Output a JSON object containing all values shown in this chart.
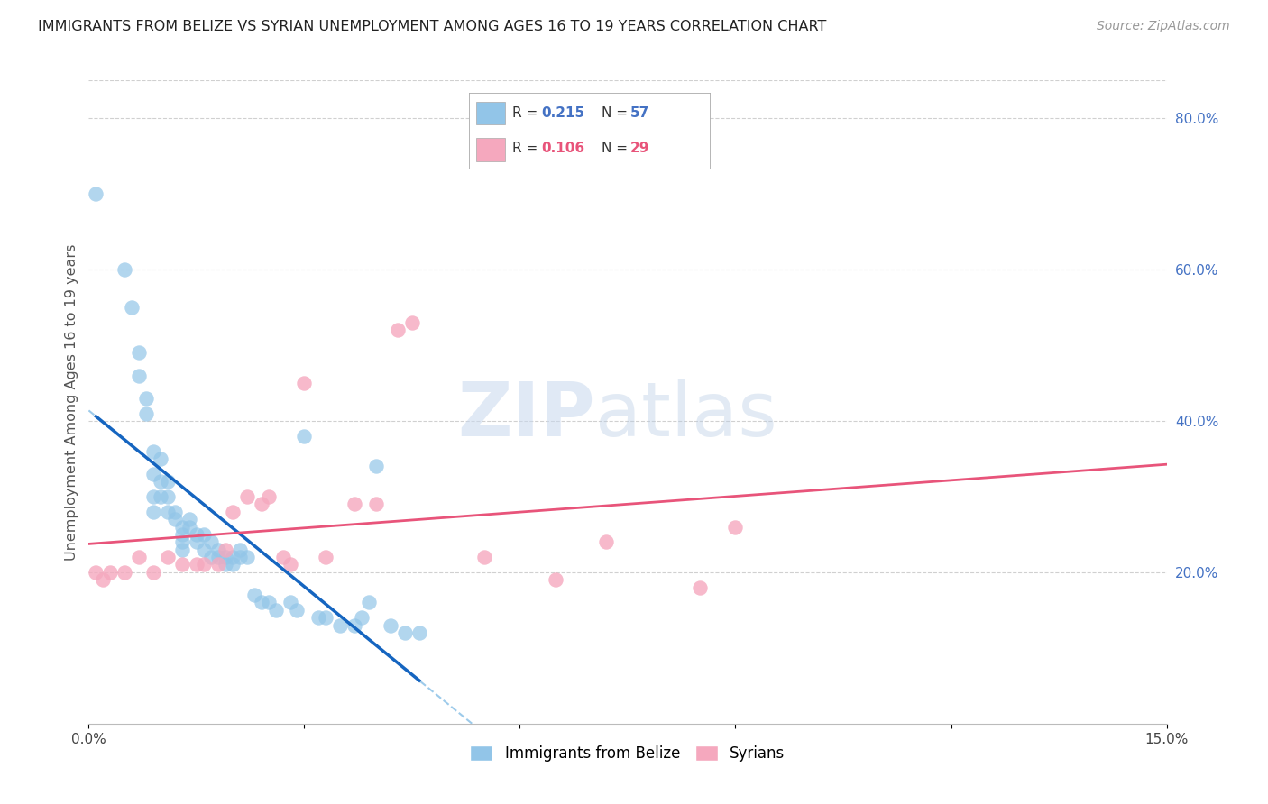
{
  "title": "IMMIGRANTS FROM BELIZE VS SYRIAN UNEMPLOYMENT AMONG AGES 16 TO 19 YEARS CORRELATION CHART",
  "source": "Source: ZipAtlas.com",
  "ylabel": "Unemployment Among Ages 16 to 19 years",
  "xlim": [
    0.0,
    0.15
  ],
  "ylim": [
    0.0,
    0.85
  ],
  "xtick_positions": [
    0.0,
    0.03,
    0.06,
    0.09,
    0.12,
    0.15
  ],
  "xtick_labels": [
    "0.0%",
    "",
    "",
    "",
    "",
    "15.0%"
  ],
  "ytick_right_positions": [
    0.2,
    0.4,
    0.6,
    0.8
  ],
  "ytick_right_labels": [
    "20.0%",
    "40.0%",
    "60.0%",
    "80.0%"
  ],
  "belize_color": "#92C5E8",
  "syrian_color": "#F5A8BE",
  "belize_line_color": "#1565c0",
  "syrian_line_color": "#e8547a",
  "dashed_line_color": "#92C5E8",
  "R_belize": "0.215",
  "N_belize": "57",
  "R_syrian": "0.106",
  "N_syrian": "29",
  "belize_x": [
    0.001,
    0.005,
    0.006,
    0.007,
    0.007,
    0.008,
    0.008,
    0.009,
    0.009,
    0.009,
    0.009,
    0.01,
    0.01,
    0.01,
    0.011,
    0.011,
    0.011,
    0.012,
    0.012,
    0.013,
    0.013,
    0.013,
    0.013,
    0.014,
    0.014,
    0.015,
    0.015,
    0.016,
    0.016,
    0.017,
    0.017,
    0.018,
    0.018,
    0.019,
    0.019,
    0.02,
    0.02,
    0.021,
    0.021,
    0.022,
    0.023,
    0.024,
    0.025,
    0.026,
    0.028,
    0.029,
    0.03,
    0.032,
    0.033,
    0.035,
    0.037,
    0.038,
    0.039,
    0.04,
    0.042,
    0.044,
    0.046
  ],
  "belize_y": [
    0.7,
    0.6,
    0.55,
    0.49,
    0.46,
    0.43,
    0.41,
    0.36,
    0.33,
    0.3,
    0.28,
    0.35,
    0.32,
    0.3,
    0.32,
    0.3,
    0.28,
    0.28,
    0.27,
    0.26,
    0.25,
    0.24,
    0.23,
    0.27,
    0.26,
    0.25,
    0.24,
    0.25,
    0.23,
    0.24,
    0.22,
    0.23,
    0.22,
    0.22,
    0.21,
    0.22,
    0.21,
    0.23,
    0.22,
    0.22,
    0.17,
    0.16,
    0.16,
    0.15,
    0.16,
    0.15,
    0.38,
    0.14,
    0.14,
    0.13,
    0.13,
    0.14,
    0.16,
    0.34,
    0.13,
    0.12,
    0.12
  ],
  "syrian_x": [
    0.001,
    0.002,
    0.003,
    0.005,
    0.007,
    0.009,
    0.011,
    0.013,
    0.015,
    0.016,
    0.018,
    0.019,
    0.02,
    0.022,
    0.024,
    0.025,
    0.027,
    0.028,
    0.03,
    0.033,
    0.037,
    0.04,
    0.043,
    0.045,
    0.055,
    0.065,
    0.072,
    0.085,
    0.09
  ],
  "syrian_y": [
    0.2,
    0.19,
    0.2,
    0.2,
    0.22,
    0.2,
    0.22,
    0.21,
    0.21,
    0.21,
    0.21,
    0.23,
    0.28,
    0.3,
    0.29,
    0.3,
    0.22,
    0.21,
    0.45,
    0.22,
    0.29,
    0.29,
    0.52,
    0.53,
    0.22,
    0.19,
    0.24,
    0.18,
    0.26
  ],
  "watermark_zip": "ZIP",
  "watermark_atlas": "atlas",
  "background_color": "#ffffff",
  "grid_color": "#d0d0d0",
  "belize_legend_label": "Immigrants from Belize",
  "syrian_legend_label": "Syrians"
}
